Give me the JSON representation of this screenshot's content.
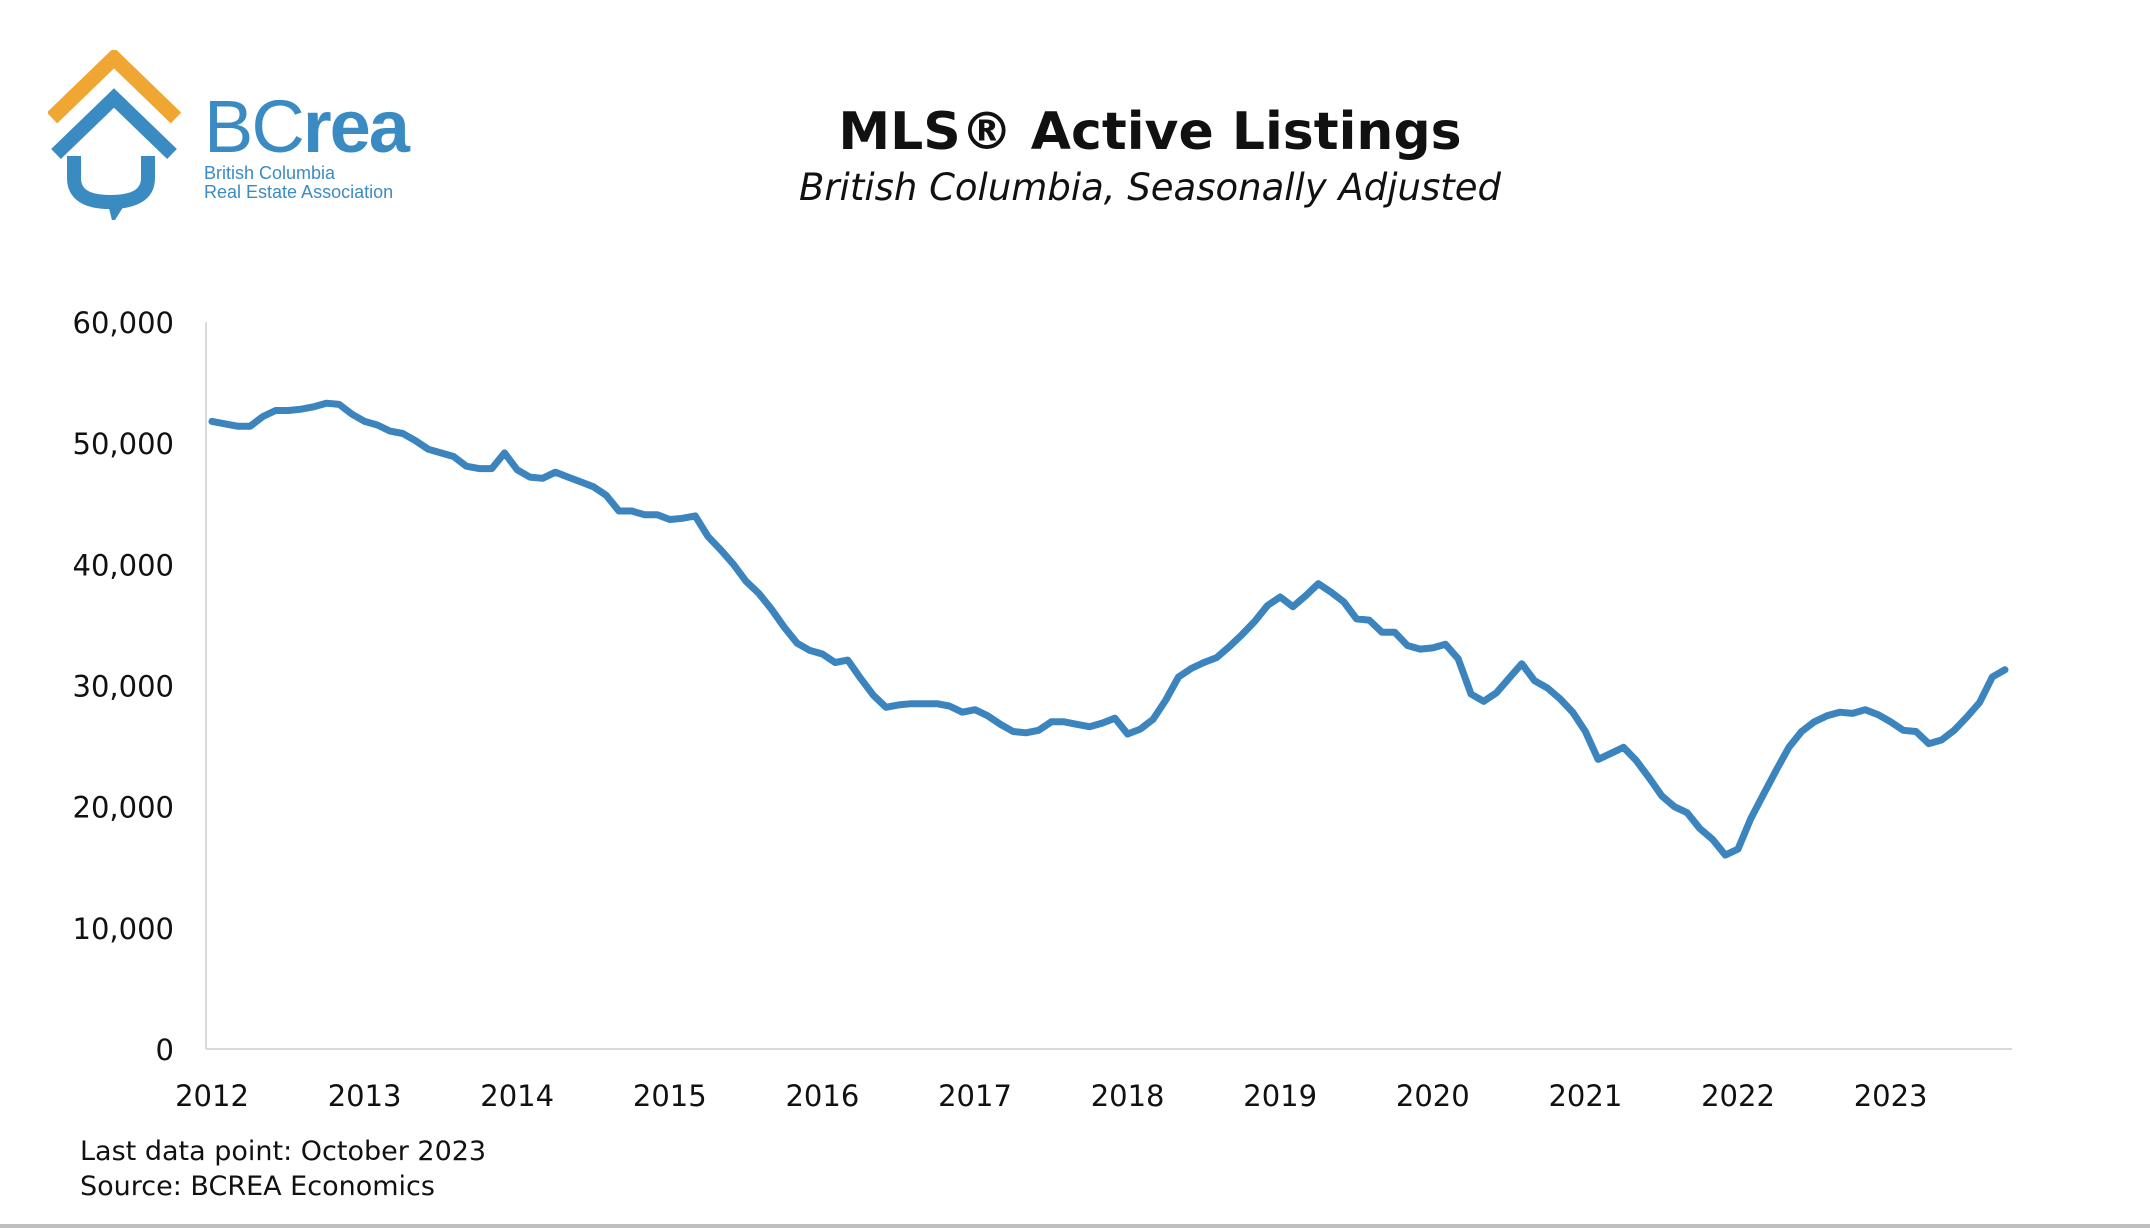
{
  "brand": {
    "logo_word_bc": "BC",
    "logo_word_rea": "rea",
    "logo_line1": "British Columbia",
    "logo_line2": "Real Estate Association",
    "colors": {
      "roof": "#f0a632",
      "house": "#3b8bc3"
    }
  },
  "header": {
    "title": "MLS® Active Listings",
    "subtitle": "British Columbia, Seasonally Adjusted"
  },
  "footer": {
    "last_data_point": "Last data point: October 2023",
    "source": "Source: BCREA Economics"
  },
  "chart_data": {
    "type": "line",
    "title": "MLS® Active Listings",
    "subtitle": "British Columbia, Seasonally Adjusted",
    "xlabel": "",
    "ylabel": "",
    "x_start": "2012-01",
    "x_end": "2023-10",
    "xticks": [
      "2012",
      "2013",
      "2014",
      "2015",
      "2016",
      "2017",
      "2018",
      "2019",
      "2020",
      "2021",
      "2022",
      "2023"
    ],
    "yticks": [
      "0",
      "10,000",
      "20,000",
      "30,000",
      "40,000",
      "50,000",
      "60,000"
    ],
    "ylim": [
      0,
      60000
    ],
    "grid": false,
    "legend": "none",
    "line_color": "#3b84be",
    "series": [
      {
        "values": [
          51800,
          51600,
          51400,
          51400,
          52200,
          52700,
          52700,
          52800,
          53000,
          53300,
          53200,
          52400,
          51800,
          51500,
          51000,
          50800,
          50200,
          49500,
          49200,
          48900,
          48100,
          47900,
          47900,
          49200,
          47800,
          47200,
          47100,
          47600,
          47200,
          46800,
          46400,
          45700,
          44400,
          44400,
          44100,
          44100,
          43700,
          43800,
          44000,
          42300,
          41200,
          40000,
          38600,
          37600,
          36300,
          34800,
          33500,
          32900,
          32600,
          31900,
          32100,
          30600,
          29200,
          28200,
          28400,
          28500,
          28500,
          28500,
          28300,
          27800,
          28000,
          27500,
          26800,
          26200,
          26100,
          26300,
          27000,
          27000,
          26800,
          26600,
          26900,
          27300,
          26000,
          26400,
          27200,
          28800,
          30700,
          31400,
          31900,
          32300,
          33200,
          34200,
          35300,
          36600,
          37300,
          36500,
          37400,
          38400,
          37700,
          36900,
          35500,
          35400,
          34400,
          34400,
          33300,
          33000,
          33100,
          33400,
          32200,
          29300,
          28700,
          29400,
          30600,
          31800,
          30400,
          29800,
          28900,
          27800,
          26200,
          23900,
          24400,
          24900,
          23800,
          22400,
          20900,
          20000,
          19500,
          18200,
          17300,
          16000,
          16500,
          19000,
          21000,
          23000,
          24900,
          26200,
          27000,
          27500,
          27800,
          27700,
          28000,
          27600,
          27000,
          26300,
          26200,
          25200,
          25500,
          26300,
          27400,
          28600,
          30700,
          31300
        ]
      }
    ]
  }
}
